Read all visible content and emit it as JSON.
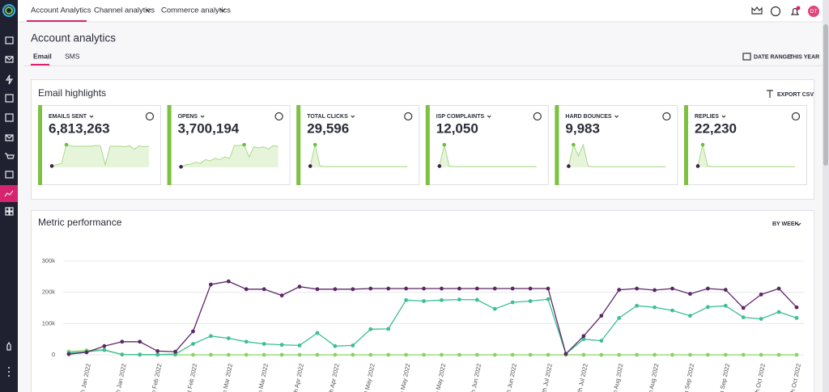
{
  "nav": {
    "tabs": [
      "Account Analytics",
      "Channel analytics",
      "Commerce analytics"
    ],
    "user_initials": "DT"
  },
  "header": {
    "title": "Account analytics",
    "tabs": [
      "Email",
      "SMS"
    ],
    "date_range_label": "DATE RANGE:",
    "date_range_value": "THIS YEAR"
  },
  "highlights": {
    "title": "Email highlights",
    "export": "EXPORT CSV",
    "sparkline_color": "#a9d98a",
    "cards": [
      {
        "label": "EMAILS SENT",
        "value": "6,813,263",
        "sparkline": [
          5,
          10,
          15,
          88,
          82,
          82,
          82,
          82,
          82,
          85,
          84,
          10,
          82,
          82,
          82,
          80,
          84,
          70,
          84,
          80,
          82
        ]
      },
      {
        "label": "OPENS",
        "value": "3,700,194",
        "sparkline": [
          2,
          10,
          12,
          20,
          15,
          30,
          25,
          35,
          30,
          40,
          35,
          85,
          85,
          88,
          40,
          80,
          75,
          80,
          70,
          85,
          80
        ]
      },
      {
        "label": "TOTAL CLICKS",
        "value": "29,596",
        "sparkline": [
          5,
          95,
          5,
          3,
          3,
          3,
          3,
          3,
          3,
          3,
          3,
          3,
          3,
          3,
          3,
          3,
          3,
          3,
          3,
          3,
          3
        ]
      },
      {
        "label": "ISP COMPLAINTS",
        "value": "12,050",
        "sparkline": [
          5,
          90,
          5,
          3,
          3,
          3,
          3,
          3,
          3,
          3,
          3,
          3,
          3,
          3,
          3,
          3,
          3,
          3,
          3,
          3,
          3
        ]
      },
      {
        "label": "HARD BOUNCES",
        "value": "9,983",
        "sparkline": [
          5,
          100,
          50,
          100,
          5,
          3,
          3,
          3,
          3,
          3,
          3,
          3,
          3,
          3,
          3,
          3,
          3,
          3,
          3,
          3,
          3
        ]
      },
      {
        "label": "REPLIES",
        "value": "22,230",
        "sparkline": [
          5,
          90,
          5,
          3,
          3,
          3,
          3,
          3,
          3,
          3,
          3,
          3,
          3,
          3,
          3,
          3,
          3,
          3,
          3,
          3,
          3
        ]
      }
    ]
  },
  "chart_data": {
    "type": "line",
    "title": "Metric performance",
    "period": "BY WEEK",
    "categories": [
      null,
      "th Jan 2022",
      null,
      "th Jan 2022",
      null,
      "th Feb 2022",
      null,
      "st Feb 2022",
      null,
      "th Mar 2022",
      null,
      "th Mar 2022",
      null,
      "th Apr 2022",
      null,
      "th Apr 2022",
      null,
      "d May 2022",
      null,
      "th May 2022",
      null,
      "th May 2022",
      null,
      "th Jun 2022",
      null,
      "th Jun 2022",
      null,
      "th Jul 2022",
      null,
      "th Jul 2022",
      null,
      "th Aug 2022",
      null,
      "th Aug 2022",
      null,
      "th Sep 2022",
      null,
      "th Sep 2022",
      null,
      "th Oct 2022",
      null,
      "th Oct 2022"
    ],
    "series": [
      {
        "color": "#5c2767",
        "values": [
          2000,
          8000,
          28000,
          42000,
          42000,
          12000,
          10000,
          75000,
          225000,
          235000,
          210000,
          210000,
          190000,
          218000,
          210000,
          210000,
          210000,
          212000,
          212000,
          212000,
          212000,
          212000,
          212000,
          212000,
          212000,
          212000,
          212000,
          212000,
          3000,
          60000,
          125000,
          208000,
          212000,
          207000,
          212000,
          195000,
          212000,
          208000,
          150000,
          193000,
          212000,
          152000
        ]
      },
      {
        "color": "#3cbf93",
        "values": [
          6000,
          10000,
          15000,
          1000,
          1000,
          1000,
          2000,
          35000,
          60000,
          53000,
          42000,
          35000,
          32000,
          30000,
          70000,
          28000,
          30000,
          82000,
          83000,
          175000,
          172000,
          175000,
          177000,
          176000,
          147000,
          168000,
          172000,
          178000,
          3000,
          50000,
          45000,
          118000,
          157000,
          152000,
          142000,
          125000,
          153000,
          157000,
          120000,
          115000,
          137000,
          118000
        ]
      },
      {
        "color": "#8ad35f",
        "values": [
          10000,
          14000,
          16000,
          1000,
          0,
          0,
          0,
          0,
          0,
          0,
          0,
          0,
          0,
          0,
          0,
          0,
          0,
          0,
          0,
          0,
          0,
          0,
          0,
          0,
          0,
          0,
          0,
          0,
          0,
          0,
          0,
          0,
          0,
          0,
          0,
          0,
          0,
          0,
          0,
          0,
          0,
          0
        ]
      }
    ],
    "ylim": [
      0,
      300000
    ],
    "yticks": [
      0,
      {
        "value": 100000,
        "label": "100k"
      },
      {
        "value": 200000,
        "label": "200k"
      },
      {
        "value": 300000,
        "label": "300k"
      }
    ],
    "grid": true
  }
}
